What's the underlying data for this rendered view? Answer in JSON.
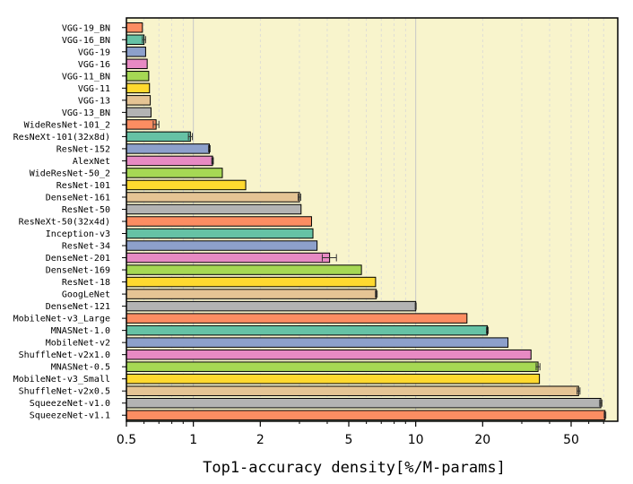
{
  "chart_data": {
    "type": "bar",
    "orientation": "horizontal",
    "xscale": "log",
    "xlim": [
      0.5,
      80
    ],
    "xlabel": "Top1-accuracy density[%/M-params]",
    "xticks": [
      {
        "value": 0.5,
        "label": "0.5"
      },
      {
        "value": 1,
        "label": "1"
      },
      {
        "value": 2,
        "label": "2"
      },
      {
        "value": 5,
        "label": "5"
      },
      {
        "value": 10,
        "label": "10"
      },
      {
        "value": 20,
        "label": "20"
      },
      {
        "value": 50,
        "label": "50"
      }
    ],
    "grid": true,
    "background": "#f8f4cc",
    "categories": [
      "VGG-19_BN",
      "VGG-16_BN",
      "VGG-19",
      "VGG-16",
      "VGG-11_BN",
      "VGG-11",
      "VGG-13",
      "VGG-13_BN",
      "WideResNet-101_2",
      "ResNeXt-101(32x8d)",
      "ResNet-152",
      "AlexNet",
      "WideResNet-50_2",
      "ResNet-101",
      "DenseNet-161",
      "ResNet-50",
      "ResNeXt-50(32x4d)",
      "Inception-v3",
      "ResNet-34",
      "DenseNet-201",
      "DenseNet-169",
      "ResNet-18",
      "GoogLeNet",
      "DenseNet-121",
      "MobileNet-v3_Large",
      "MNASNet-1.0",
      "MobileNet-v2",
      "ShuffleNet-v2x1.0",
      "MNASNet-0.5",
      "MobileNet-v3_Small",
      "ShuffleNet-v2x0.5",
      "SqueezeNet-v1.0",
      "SqueezeNet-v1.1"
    ],
    "values": [
      0.59,
      0.6,
      0.61,
      0.62,
      0.63,
      0.635,
      0.64,
      0.645,
      0.68,
      0.97,
      1.18,
      1.22,
      1.35,
      1.72,
      3.0,
      3.05,
      3.4,
      3.45,
      3.6,
      4.1,
      5.7,
      6.6,
      6.65,
      10.0,
      17.0,
      21.0,
      26.0,
      33.0,
      35.5,
      36.0,
      54.0,
      68.0,
      71.0
    ],
    "errors": [
      0,
      0.01,
      0,
      0,
      0,
      0,
      0,
      0,
      0.02,
      0.02,
      0.01,
      0.01,
      0,
      0,
      0.04,
      0,
      0,
      0,
      0,
      0.3,
      0,
      0,
      0.06,
      0.05,
      0,
      0.2,
      0,
      0,
      0.7,
      0,
      0.8,
      0.8,
      0.6
    ],
    "colors": [
      "#fc8d62",
      "#66c2a5",
      "#8da0cb",
      "#e78ac3",
      "#a6d854",
      "#ffd92f",
      "#e5c494",
      "#b3b3b3"
    ]
  }
}
